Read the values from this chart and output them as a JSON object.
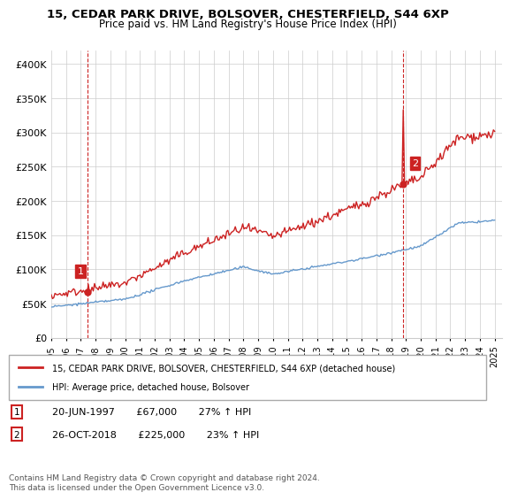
{
  "title": "15, CEDAR PARK DRIVE, BOLSOVER, CHESTERFIELD, S44 6XP",
  "subtitle": "Price paid vs. HM Land Registry's House Price Index (HPI)",
  "ylim": [
    0,
    420000
  ],
  "yticks": [
    0,
    50000,
    100000,
    150000,
    200000,
    250000,
    300000,
    350000,
    400000
  ],
  "ytick_labels": [
    "£0",
    "£50K",
    "£100K",
    "£150K",
    "£200K",
    "£250K",
    "£300K",
    "£350K",
    "£400K"
  ],
  "sale1_date_num": 1997.47,
  "sale1_price": 67000,
  "sale2_date_num": 2018.82,
  "sale2_price": 225000,
  "legend_line1": "15, CEDAR PARK DRIVE, BOLSOVER, CHESTERFIELD, S44 6XP (detached house)",
  "legend_line2": "HPI: Average price, detached house, Bolsover",
  "annotation1_label": "1",
  "annotation1_text": "20-JUN-1997       £67,000       27% ↑ HPI",
  "annotation2_label": "2",
  "annotation2_text": "26-OCT-2018       £225,000       23% ↑ HPI",
  "footer": "Contains HM Land Registry data © Crown copyright and database right 2024.\nThis data is licensed under the Open Government Licence v3.0.",
  "hpi_color": "#6699cc",
  "sale_color": "#cc2222",
  "vline_color": "#cc2222",
  "background_color": "#ffffff",
  "grid_color": "#cccccc"
}
